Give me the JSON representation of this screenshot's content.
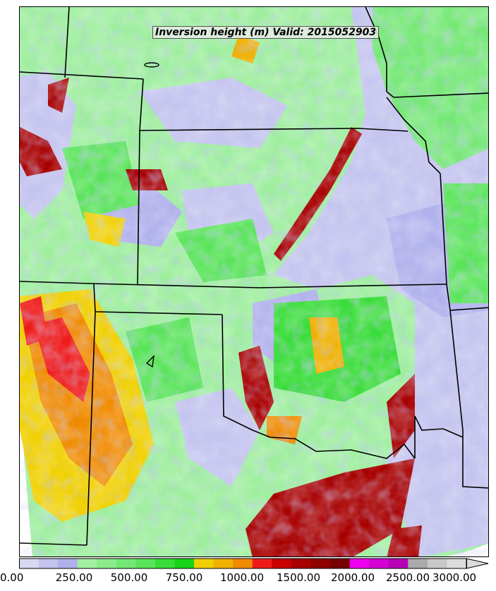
{
  "map": {
    "title": "Inversion height (m) Valid: 2015052903",
    "colors": {
      "boundary": "#000000",
      "background": "#ffffff"
    }
  },
  "colorbar": {
    "tick_labels": [
      "0.00",
      "250.00",
      "500.00",
      "750.00",
      "1000.00",
      "1500.00",
      "2000.00",
      "2500.00",
      "3000.00"
    ],
    "colors": [
      "#d8d8f0",
      "#c4c4ee",
      "#b0b0ec",
      "#a2efa2",
      "#8cec8c",
      "#74e874",
      "#58e458",
      "#38dc38",
      "#18d418",
      "#f0d000",
      "#f0b000",
      "#f08a00",
      "#ee1a1a",
      "#c80000",
      "#a80000",
      "#900000",
      "#780000",
      "#ee00ee",
      "#d400d4",
      "#b800b8",
      "#aaaaaa",
      "#c8c8c8",
      "#dcdcdc"
    ],
    "extend": "max"
  }
}
